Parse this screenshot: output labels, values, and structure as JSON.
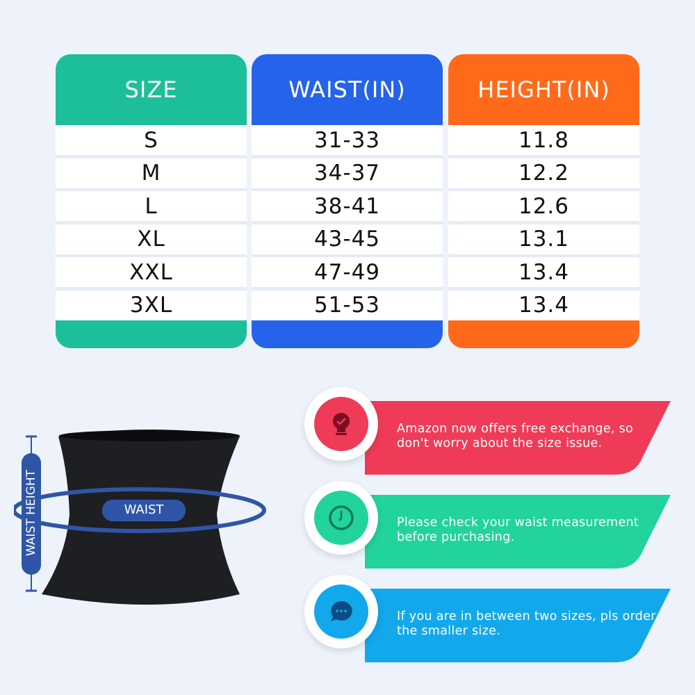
{
  "table": {
    "headers": [
      "SIZE",
      "WAIST(IN)",
      "HEIGHT(IN)"
    ],
    "colors": [
      "#1dbf9a",
      "#2563ea",
      "#ff6a1a"
    ],
    "rows": [
      [
        "S",
        "31-33",
        "11.8"
      ],
      [
        "M",
        "34-37",
        "12.2"
      ],
      [
        "L",
        "38-41",
        "12.6"
      ],
      [
        "XL",
        "43-45",
        "13.1"
      ],
      [
        "XXL",
        "47-49",
        "13.4"
      ],
      [
        "3XL",
        "51-53",
        "13.4"
      ]
    ]
  },
  "diagram": {
    "waist_label": "WAIST",
    "height_label": "WAIST HEIGHT",
    "accent": "#2f56a6"
  },
  "tips": [
    {
      "icon": "lightbulb-check-icon",
      "color": "#ef3b57",
      "text": "Amazon now offers free exchange, so don't worry about the size issue."
    },
    {
      "icon": "clock-icon",
      "color": "#22d39c",
      "text": "Please check your waist measurement before purchasing."
    },
    {
      "icon": "chat-bubble-icon",
      "color": "#12a8ec",
      "text": "If you are in between two sizes, pls order the smaller size."
    }
  ]
}
